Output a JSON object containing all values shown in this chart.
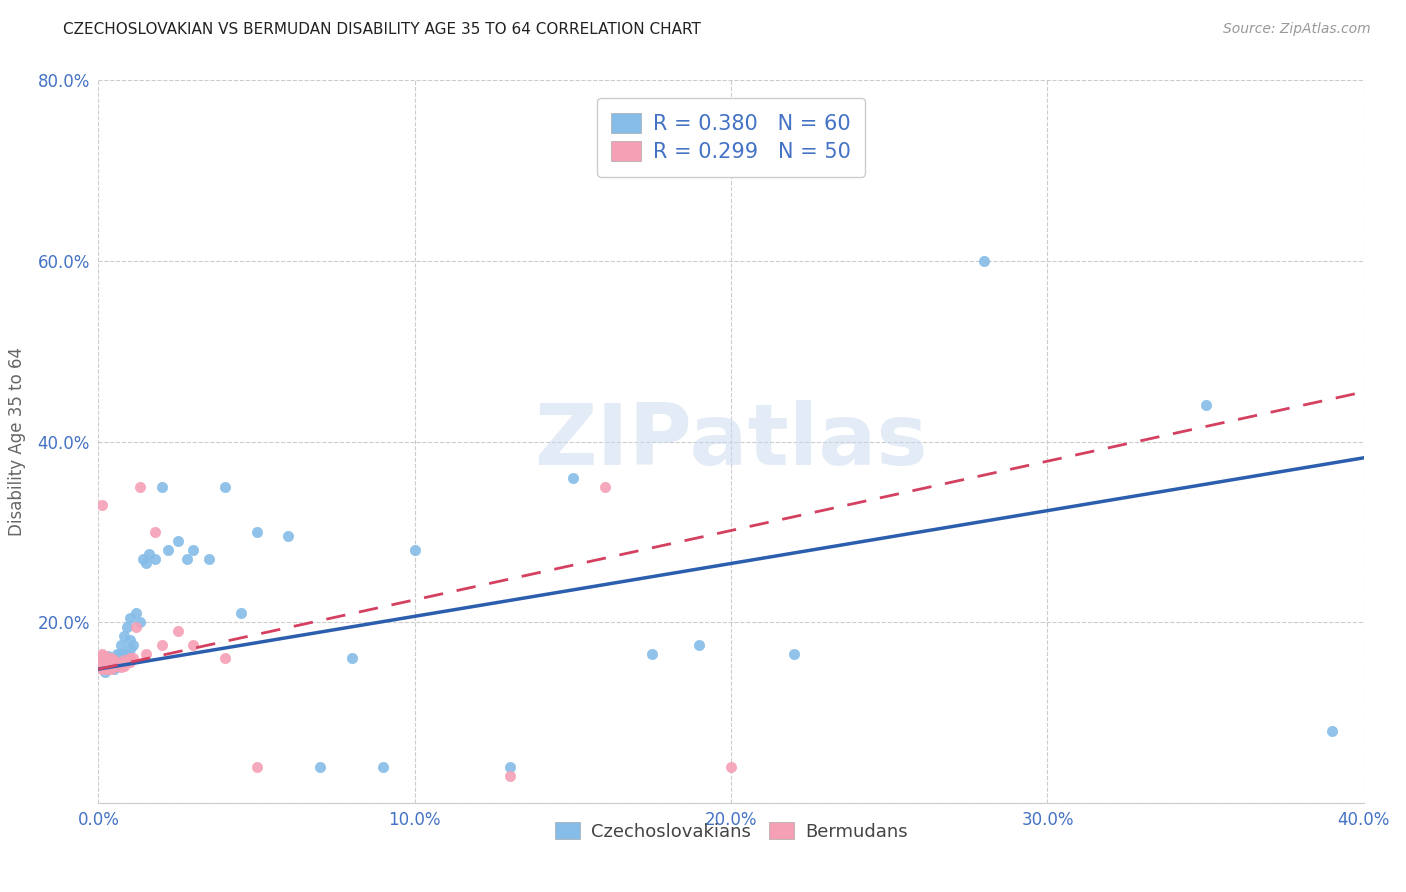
{
  "title": "CZECHOSLOVAKIAN VS BERMUDAN DISABILITY AGE 35 TO 64 CORRELATION CHART",
  "source": "Source: ZipAtlas.com",
  "ylabel": "Disability Age 35 to 64",
  "xlim": [
    0.0,
    0.4
  ],
  "ylim": [
    0.0,
    0.8
  ],
  "xtick_vals": [
    0.0,
    0.1,
    0.2,
    0.3,
    0.4
  ],
  "ytick_vals": [
    0.0,
    0.2,
    0.4,
    0.6,
    0.8
  ],
  "xtick_labels": [
    "0.0%",
    "10.0%",
    "20.0%",
    "30.0%",
    "40.0%"
  ],
  "ytick_labels": [
    "",
    "20.0%",
    "40.0%",
    "60.0%",
    "80.0%"
  ],
  "grid_color": "#cccccc",
  "background_color": "#ffffff",
  "czech_dot_color": "#85bde8",
  "bermuda_dot_color": "#f5a0b5",
  "czech_line_color": "#2b5fad",
  "bermuda_line_color": "#d44060",
  "legend_label_czech": "Czechoslovakians",
  "legend_label_bermuda": "Bermudans",
  "watermark": "ZIPatlas",
  "tick_color": "#4472c4",
  "czech_x": [
    0.001,
    0.001,
    0.001,
    0.002,
    0.002,
    0.002,
    0.002,
    0.003,
    0.003,
    0.003,
    0.003,
    0.004,
    0.004,
    0.004,
    0.005,
    0.005,
    0.005,
    0.005,
    0.006,
    0.006,
    0.006,
    0.007,
    0.007,
    0.007,
    0.008,
    0.008,
    0.009,
    0.009,
    0.01,
    0.01,
    0.01,
    0.011,
    0.012,
    0.013,
    0.014,
    0.015,
    0.016,
    0.018,
    0.02,
    0.022,
    0.025,
    0.028,
    0.03,
    0.035,
    0.04,
    0.045,
    0.05,
    0.06,
    0.07,
    0.08,
    0.09,
    0.1,
    0.13,
    0.15,
    0.175,
    0.19,
    0.22,
    0.28,
    0.35,
    0.39
  ],
  "czech_y": [
    0.15,
    0.155,
    0.16,
    0.145,
    0.148,
    0.152,
    0.158,
    0.15,
    0.155,
    0.16,
    0.162,
    0.15,
    0.155,
    0.158,
    0.148,
    0.152,
    0.155,
    0.16,
    0.155,
    0.162,
    0.165,
    0.155,
    0.165,
    0.175,
    0.16,
    0.185,
    0.165,
    0.195,
    0.17,
    0.18,
    0.205,
    0.175,
    0.21,
    0.2,
    0.27,
    0.265,
    0.275,
    0.27,
    0.35,
    0.28,
    0.29,
    0.27,
    0.28,
    0.27,
    0.35,
    0.21,
    0.3,
    0.295,
    0.04,
    0.16,
    0.04,
    0.28,
    0.04,
    0.36,
    0.165,
    0.175,
    0.165,
    0.6,
    0.44,
    0.08
  ],
  "bermuda_x": [
    0.001,
    0.001,
    0.001,
    0.001,
    0.001,
    0.001,
    0.001,
    0.001,
    0.001,
    0.001,
    0.001,
    0.002,
    0.002,
    0.002,
    0.002,
    0.002,
    0.003,
    0.003,
    0.003,
    0.003,
    0.003,
    0.004,
    0.004,
    0.004,
    0.004,
    0.005,
    0.005,
    0.005,
    0.006,
    0.006,
    0.007,
    0.007,
    0.008,
    0.008,
    0.009,
    0.01,
    0.01,
    0.011,
    0.012,
    0.013,
    0.015,
    0.018,
    0.02,
    0.025,
    0.03,
    0.04,
    0.05,
    0.13,
    0.16,
    0.2
  ],
  "bermuda_y": [
    0.148,
    0.15,
    0.152,
    0.154,
    0.155,
    0.156,
    0.158,
    0.16,
    0.162,
    0.165,
    0.33,
    0.148,
    0.15,
    0.155,
    0.158,
    0.162,
    0.148,
    0.15,
    0.153,
    0.156,
    0.16,
    0.148,
    0.151,
    0.155,
    0.16,
    0.15,
    0.154,
    0.158,
    0.152,
    0.156,
    0.15,
    0.155,
    0.152,
    0.158,
    0.155,
    0.156,
    0.16,
    0.16,
    0.195,
    0.35,
    0.165,
    0.3,
    0.175,
    0.19,
    0.175,
    0.16,
    0.04,
    0.03,
    0.35,
    0.04
  ]
}
